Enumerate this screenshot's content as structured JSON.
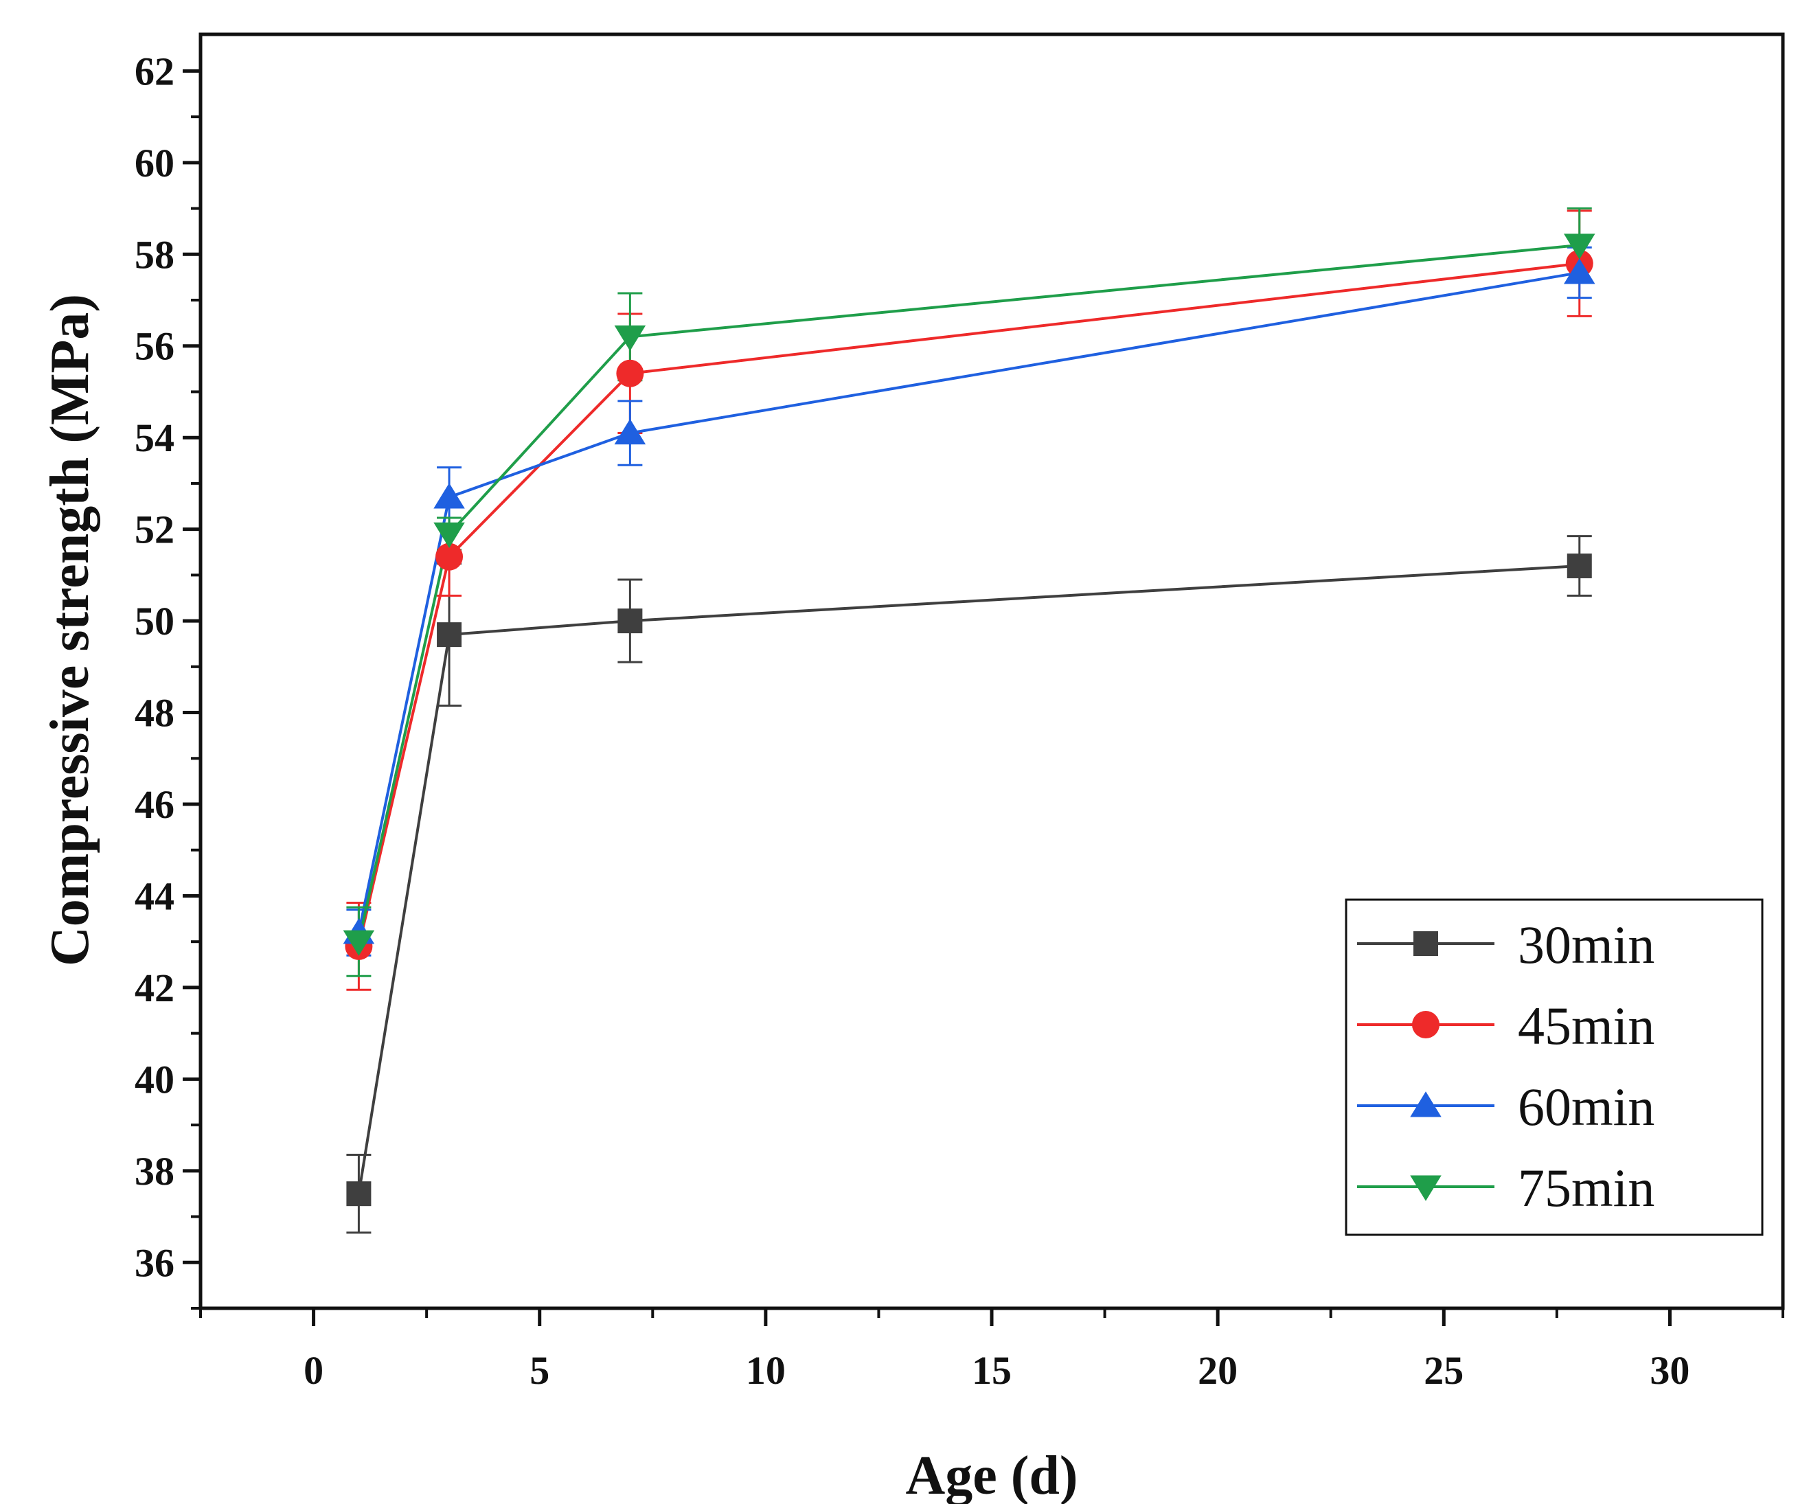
{
  "chart_data": {
    "type": "line",
    "title": "",
    "xlabel": "Age (d)",
    "ylabel": "Compressive strength (MPa)",
    "xlim": [
      -2.5,
      32.5
    ],
    "ylim": [
      35,
      62.8
    ],
    "xticks": [
      0,
      5,
      10,
      15,
      20,
      25,
      30
    ],
    "yticks": [
      36,
      38,
      40,
      42,
      44,
      46,
      48,
      50,
      52,
      54,
      56,
      58,
      60,
      62
    ],
    "xtick_labels": [
      "0",
      "5",
      "10",
      "15",
      "20",
      "25",
      "30"
    ],
    "ytick_labels": [
      "36",
      "38",
      "40",
      "42",
      "44",
      "46",
      "48",
      "50",
      "52",
      "54",
      "56",
      "58",
      "60",
      "62"
    ],
    "grid": false,
    "legend_position": "bottom-right",
    "x": [
      1,
      3,
      7,
      28
    ],
    "series": [
      {
        "name": "30min",
        "color": "#3f3f3f",
        "marker": "square",
        "values": [
          37.5,
          49.7,
          50.0,
          51.2
        ],
        "errors": [
          0.85,
          1.55,
          0.9,
          0.65
        ]
      },
      {
        "name": "45min",
        "color": "#ee2a2a",
        "marker": "circle",
        "values": [
          42.9,
          51.4,
          55.4,
          57.8
        ],
        "errors": [
          0.95,
          0.85,
          1.3,
          1.15
        ]
      },
      {
        "name": "60min",
        "color": "#1f60e0",
        "marker": "triangle-up",
        "values": [
          43.2,
          52.7,
          54.1,
          57.6
        ],
        "errors": [
          0.5,
          0.65,
          0.7,
          0.55
        ]
      },
      {
        "name": "75min",
        "color": "#1f9e4a",
        "marker": "triangle-down",
        "values": [
          43.0,
          51.9,
          56.2,
          58.2
        ],
        "errors": [
          0.75,
          0.35,
          0.95,
          0.8
        ]
      }
    ]
  }
}
